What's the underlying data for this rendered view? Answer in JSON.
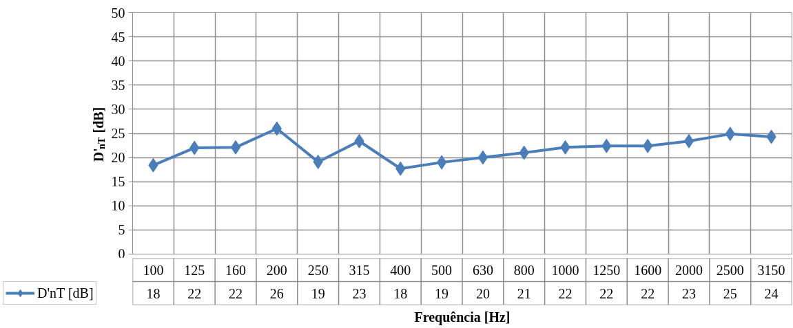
{
  "chart_data": {
    "type": "line",
    "xlabel": "Frequência [Hz]",
    "ylabel": "D'$_{nT}$ [dB]",
    "categories": [
      "100",
      "125",
      "160",
      "200",
      "250",
      "315",
      "400",
      "500",
      "630",
      "800",
      "1000",
      "1250",
      "1600",
      "2000",
      "2500",
      "3150"
    ],
    "series": [
      {
        "name": "D'nT [dB]",
        "color": "#4a7ebb",
        "values": [
          18.4,
          22.0,
          22.1,
          26.0,
          19.1,
          23.4,
          17.7,
          19.0,
          20.0,
          21.0,
          22.1,
          22.4,
          22.4,
          23.4,
          24.9,
          24.3
        ],
        "value_labels": [
          "18",
          "22",
          "22",
          "26",
          "19",
          "23",
          "18",
          "19",
          "20",
          "21",
          "22",
          "22",
          "22",
          "23",
          "25",
          "24"
        ]
      }
    ],
    "ylim": [
      0,
      50
    ],
    "yticks": [
      0,
      5,
      10,
      15,
      20,
      25,
      30,
      35,
      40,
      45,
      50
    ],
    "grid": true,
    "marker": "diamond",
    "line_style": "solid",
    "tick_labels": "y"
  }
}
